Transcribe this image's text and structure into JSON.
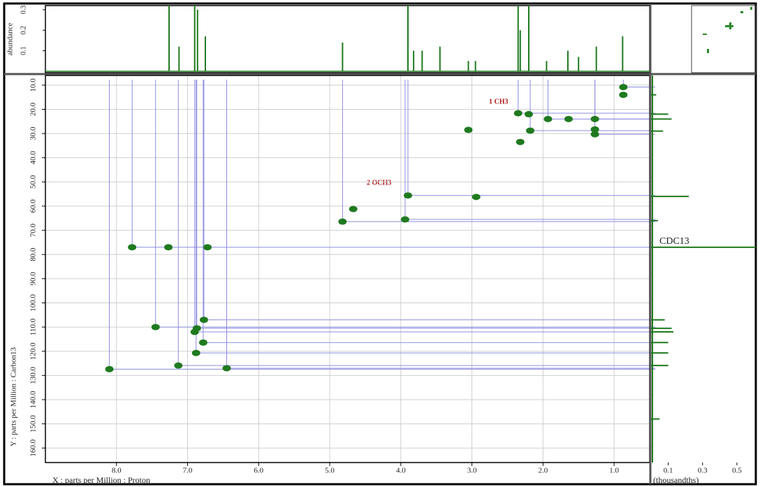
{
  "chart_data": {
    "type": "hsqc",
    "x_label": "X : parts per Million : Proton",
    "y_label": "Y : parts per Million : Carbon13",
    "xlim": [
      9,
      0.5
    ],
    "ylim": [
      6,
      166
    ],
    "xticks": [
      {
        "value": 8,
        "label": "8.0"
      },
      {
        "value": 7,
        "label": "7.0"
      },
      {
        "value": 6,
        "label": "6.0"
      },
      {
        "value": 5,
        "label": "5.0"
      },
      {
        "value": 4,
        "label": "4.0"
      },
      {
        "value": 3,
        "label": "3.0"
      },
      {
        "value": 2,
        "label": "2.0"
      },
      {
        "value": 1,
        "label": "1.0"
      }
    ],
    "yticks": [
      {
        "value": 10,
        "label": "10.0"
      },
      {
        "value": 20,
        "label": "20.0"
      },
      {
        "value": 30,
        "label": "30.0"
      },
      {
        "value": 40,
        "label": "40.0"
      },
      {
        "value": 50,
        "label": "50.0"
      },
      {
        "value": 60,
        "label": "60.0"
      },
      {
        "value": 70,
        "label": "70.0"
      },
      {
        "value": 80,
        "label": "80.0"
      },
      {
        "value": 90,
        "label": "90.0"
      },
      {
        "value": 100,
        "label": "100.0"
      },
      {
        "value": 110,
        "label": "110.0"
      },
      {
        "value": 120,
        "label": "120.0"
      },
      {
        "value": 130,
        "label": "130.0"
      },
      {
        "value": 140,
        "label": "140.0"
      },
      {
        "value": 150,
        "label": "150.0"
      },
      {
        "value": 160,
        "label": "160.0"
      }
    ],
    "grid": true,
    "color": "#1f7a1f",
    "x": [
      0.87,
      0.87,
      2.35,
      2.2,
      1.93,
      1.64,
      1.27,
      3.05,
      2.18,
      1.27,
      1.27,
      2.32,
      3.9,
      2.94,
      4.82,
      4.67,
      3.94,
      7.27,
      7.78,
      6.72,
      6.77,
      6.87,
      6.9,
      6.78,
      6.88,
      7.13,
      8.1,
      7.45,
      6.45
    ],
    "values": [
      10.8,
      14,
      21.6,
      22,
      24,
      24,
      24,
      28.5,
      28.8,
      28.3,
      30.3,
      33.5,
      55.6,
      56.2,
      66.4,
      61.2,
      65.5,
      77,
      77,
      77,
      107,
      110.5,
      112,
      116.4,
      120.7,
      125.9,
      127.4,
      110,
      127
    ],
    "annotations": [
      "1 CH3",
      "2 OCH3",
      "CDC13"
    ],
    "top_projection": {
      "y_label": "abundance",
      "ylim": [
        0,
        0.32
      ],
      "yticks": [
        0.1,
        0.2,
        0.3
      ],
      "x": [
        7.26,
        7.12,
        6.9,
        6.86,
        6.75,
        4.82,
        3.9,
        3.82,
        3.7,
        3.45,
        3.05,
        2.95,
        2.35,
        2.32,
        2.2,
        1.95,
        1.65,
        1.5,
        1.25,
        0.88
      ],
      "values": [
        0.4,
        0.12,
        0.4,
        0.3,
        0.17,
        0.14,
        0.4,
        0.1,
        0.1,
        0.12,
        0.05,
        0.05,
        0.4,
        0.2,
        0.4,
        0.05,
        0.1,
        0.07,
        0.12,
        0.17
      ]
    },
    "right_projection": {
      "x_label": "(thousandths)",
      "xlim": [
        0,
        0.61
      ],
      "xticks": [
        0.1,
        0.3,
        0.5
      ],
      "y": [
        14,
        22,
        24,
        29,
        56,
        66,
        77,
        107,
        110.5,
        112,
        116.4,
        120.7,
        125.9,
        148
      ],
      "values": [
        0.03,
        0.1,
        0.12,
        0.07,
        0.22,
        0.04,
        0.65,
        0.08,
        0.12,
        0.13,
        0.1,
        0.1,
        0.1,
        0.05
      ]
    }
  }
}
